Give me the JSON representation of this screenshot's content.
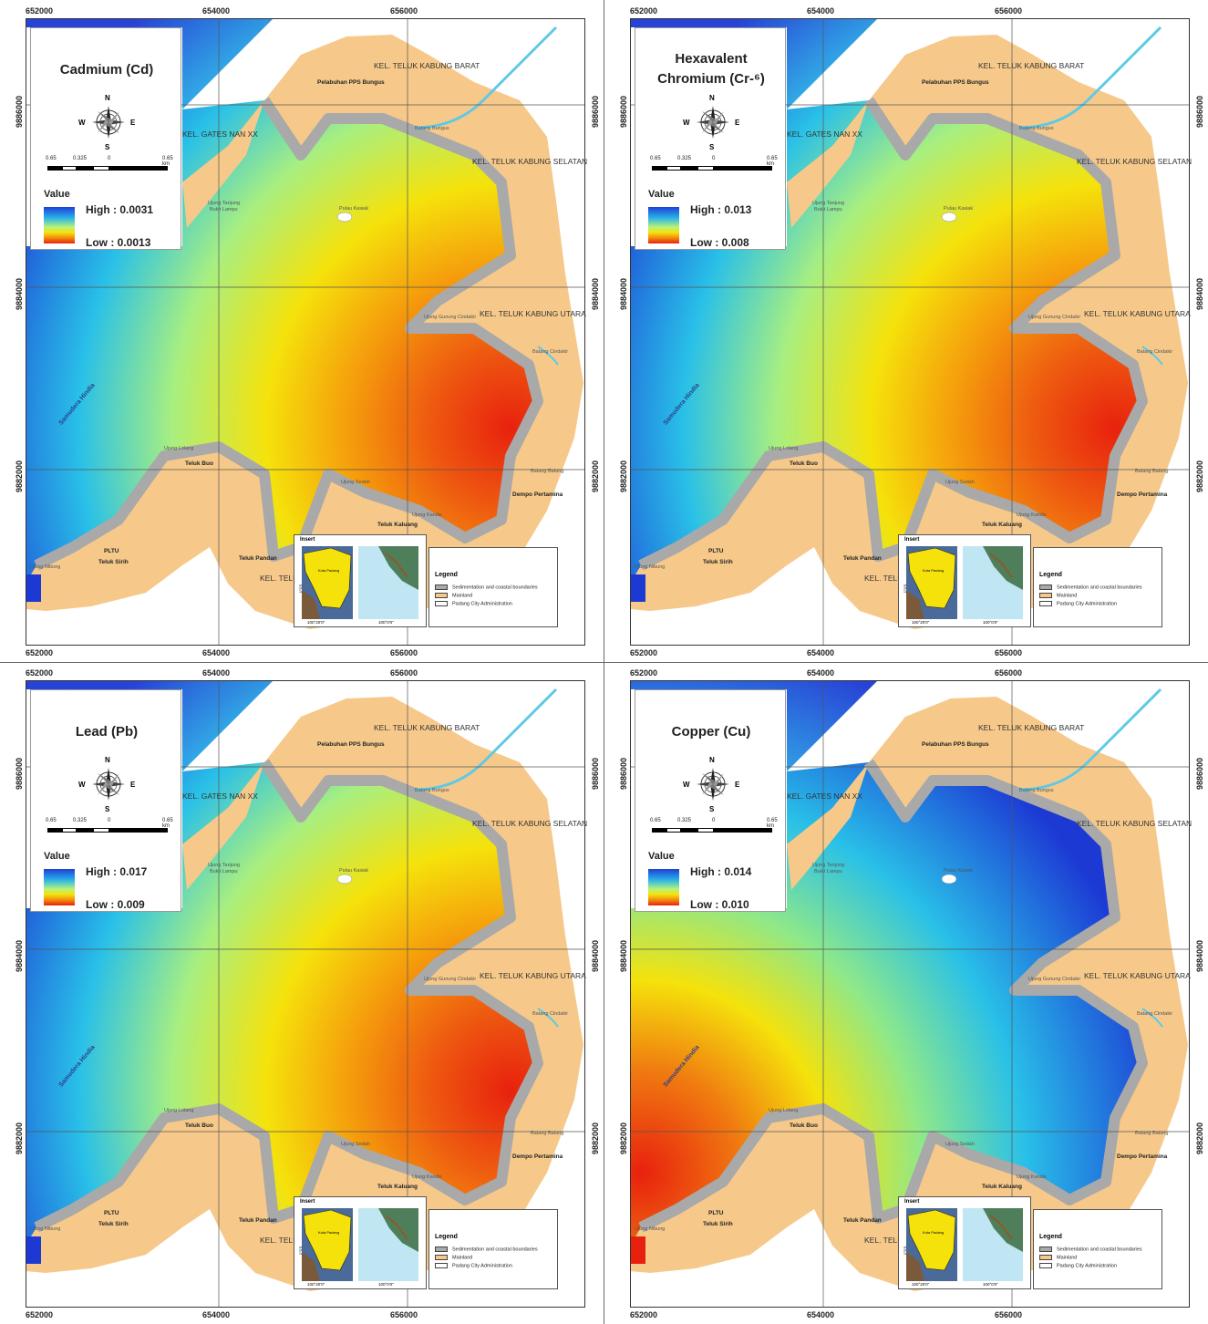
{
  "panels": [
    {
      "title_lines": [
        "Cadmium (Cd)"
      ],
      "value_label": "Value",
      "high": "High : 0.0031",
      "low": "Low : 0.0013",
      "hotspot": "east"
    },
    {
      "title_lines": [
        "Hexavalent",
        "Chromium (Cr-⁶)"
      ],
      "value_label": "Value",
      "high": "High : 0.013",
      "low": "Low : 0.008",
      "hotspot": "east"
    },
    {
      "title_lines": [
        "Lead (Pb)"
      ],
      "value_label": "Value",
      "high": "High : 0.017",
      "low": "Low : 0.009",
      "hotspot": "east"
    },
    {
      "title_lines": [
        "Copper (Cu)"
      ],
      "value_label": "Value",
      "high": "High : 0.014",
      "low": "Low : 0.010",
      "hotspot": "west"
    }
  ],
  "axis_x_ticks": [
    "652000",
    "654000",
    "656000"
  ],
  "axis_y_ticks": [
    "9886000",
    "9884000",
    "9882000"
  ],
  "scale_labels": [
    "0.65",
    "0.325",
    "0",
    "0.65 km"
  ],
  "compass": {
    "n": "N",
    "s": "S",
    "e": "E",
    "w": "W"
  },
  "places": {
    "teluk_kabung_barat": "KEL. TELUK KABUNG BARAT",
    "pelabuhan": "Pelabuhan PPS Bungus",
    "gates_nan": "KEL. GATES NAN XX",
    "batang_bungus": "Batang Bungus",
    "teluk_kabung_selatan": "KEL. TELUK KABUNG SELATAN",
    "ujung_tanjung": "Ujung Tanjung",
    "bukit_lampu": "Bukit Lampu",
    "pulau_kasiak": "Pulau Kasiak",
    "ujung_gunung_cindakir": "Ujung Gunung Cindakir",
    "teluk_kabung_utara": "KEL. TELUK KABUNG UTARA",
    "batang_cindakir": "Batang Cindakir",
    "samudera_hindia": "Samudera Hindia",
    "ujung_lolang": "Ujung Lolang",
    "teluk_buo": "Teluk Buo",
    "ujung_sedah": "Ujung Sedah",
    "batang_batung": "Batang Batung",
    "dempo_pertamina": "Dempo Pertamina",
    "ujung_kandis": "Ujung Kandis",
    "teluk_kaluang": "Teluk Kaluang",
    "pltu": "PLTU",
    "teluk_sirih": "Teluk Sirih",
    "teluk_pandan": "Teluk Pandan",
    "teluk_kabung": "Teluk Kabung",
    "kel_teluk_kabung": "KEL. TELUK KABUN",
    "ujung_nibung": "Ujung Nibung"
  },
  "inset": {
    "title": "Insert",
    "kota_padang": "Kota Padang",
    "lon1": "100°20'0\"",
    "lon2": "100°0'0\"",
    "lat": "1°0'S"
  },
  "legend": {
    "title": "Legend",
    "items": [
      "Sedimentation and coastal boundaries",
      "Mainland",
      "Padang City Administration"
    ],
    "colors": [
      "#a9a9a9",
      "#f6c98a",
      "#ffffff"
    ]
  },
  "colors": {
    "mainland": "#f6c98a",
    "sediment": "#a9a9a9",
    "deep_blue": "#1c39d4",
    "red": "#e8210e",
    "yellow": "#f5e20b",
    "cyan": "#29c0e8",
    "river": "#5ec9e6"
  }
}
